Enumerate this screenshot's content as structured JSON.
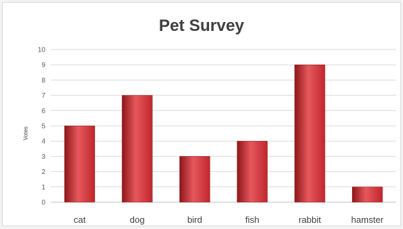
{
  "chart_data": {
    "type": "bar",
    "title": "Pet Survey",
    "xlabel": "",
    "ylabel": "Votes",
    "categories": [
      "cat",
      "dog",
      "bird",
      "fish",
      "rabbit",
      "hamster"
    ],
    "values": [
      5,
      7,
      3,
      4,
      9,
      1
    ],
    "ylim": [
      0,
      10
    ],
    "yticks": [
      0,
      1,
      2,
      3,
      4,
      5,
      6,
      7,
      8,
      9,
      10
    ],
    "grid": true,
    "legend": "none",
    "colors": {
      "bar": "#c0272d",
      "bar_light": "#e5585c",
      "bar_dark": "#8e1619",
      "grid": "#d9d9d9",
      "axis": "#bfbfbf"
    }
  }
}
